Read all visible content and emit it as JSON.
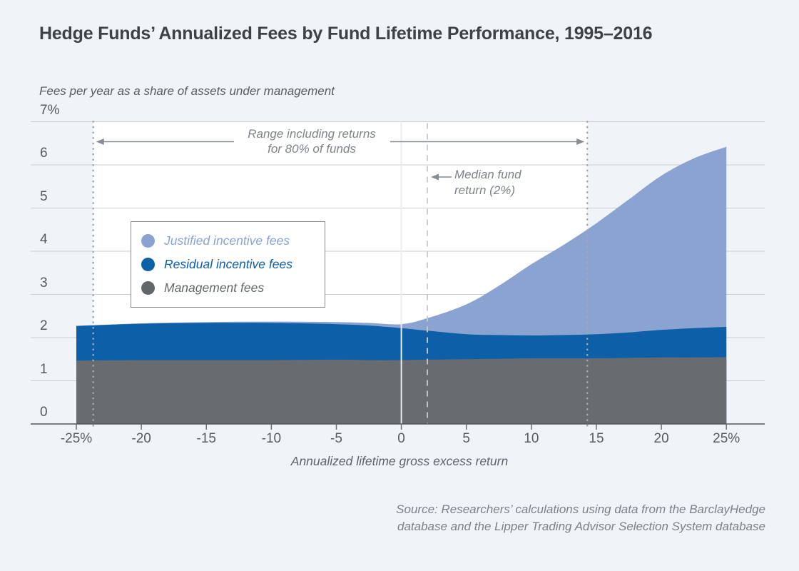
{
  "page": {
    "background": "#f0f4f9"
  },
  "header": {
    "title": "Hedge Funds’ Annualized Fees by Fund Lifetime Performance, 1995–2016"
  },
  "chart": {
    "subtitle": "Fees per year as a share of assets under management",
    "x_axis_title": "Annualized lifetime gross excess return"
  },
  "legend": {
    "items": [
      {
        "label": "Justified incentive fees",
        "color": "#8ba3d1"
      },
      {
        "label": "Residual incentive fees",
        "color": "#0d5fa8"
      },
      {
        "label": "Management fees",
        "color": "#63666b"
      }
    ]
  },
  "annotations": {
    "range": {
      "line1": "Range including returns",
      "line2": "for 80% of funds"
    },
    "median": {
      "line1": "Median fund",
      "line2": "return (2%)"
    }
  },
  "source": {
    "line1": "Source: Researchers’ calculations using data from the BarclayHedge",
    "line2": "database and the Lipper Trading Advisor Selection System database"
  },
  "chart_data": {
    "type": "area",
    "title": "Hedge Funds’ Annualized Fees by Fund Lifetime Performance, 1995–2016",
    "ylabel": "Fees per year as a share of assets under management",
    "xlabel": "Annualized lifetime gross excess return",
    "xlim": [
      -25,
      25
    ],
    "ylim": [
      0,
      7
    ],
    "grid": true,
    "legend_position": "upper-left-inside",
    "stacked": true,
    "x": [
      -25,
      -20,
      -15,
      -10,
      -5,
      -2.5,
      0,
      2,
      5,
      7.5,
      10,
      12.5,
      15,
      17.5,
      20,
      22.5,
      25
    ],
    "series": [
      {
        "name": "Management fees",
        "color": "#686b6f",
        "values": [
          1.47,
          1.48,
          1.48,
          1.48,
          1.49,
          1.48,
          1.48,
          1.49,
          1.5,
          1.51,
          1.52,
          1.52,
          1.52,
          1.53,
          1.54,
          1.54,
          1.55
        ]
      },
      {
        "name": "Residual incentive fees",
        "color": "#0d5fa8",
        "values": [
          0.8,
          0.84,
          0.86,
          0.86,
          0.82,
          0.8,
          0.74,
          0.67,
          0.58,
          0.55,
          0.53,
          0.54,
          0.56,
          0.59,
          0.64,
          0.68,
          0.7
        ]
      },
      {
        "name": "Justified incentive fees",
        "color": "#8ba3d1",
        "values": [
          0.0,
          0.01,
          0.02,
          0.03,
          0.05,
          0.06,
          0.09,
          0.29,
          0.69,
          1.14,
          1.65,
          2.09,
          2.57,
          3.08,
          3.57,
          3.93,
          4.17
        ]
      }
    ],
    "x_ticks": [
      {
        "v": -25,
        "label": "-25%"
      },
      {
        "v": -20,
        "label": "-20"
      },
      {
        "v": -15,
        "label": "-15"
      },
      {
        "v": -10,
        "label": "-10"
      },
      {
        "v": -5,
        "label": "-5"
      },
      {
        "v": 0,
        "label": "0"
      },
      {
        "v": 5,
        "label": "5"
      },
      {
        "v": 10,
        "label": "10"
      },
      {
        "v": 15,
        "label": "15"
      },
      {
        "v": 20,
        "label": "20"
      },
      {
        "v": 25,
        "label": "25%"
      }
    ],
    "y_ticks": [
      {
        "v": 7,
        "label": "7%"
      },
      {
        "v": 6,
        "label": "6"
      },
      {
        "v": 5,
        "label": "5"
      },
      {
        "v": 4,
        "label": "4"
      },
      {
        "v": 3,
        "label": "3"
      },
      {
        "v": 2,
        "label": "2"
      },
      {
        "v": 1,
        "label": "1"
      },
      {
        "v": 0,
        "label": "0"
      }
    ],
    "annotations": {
      "range_80pct": [
        -23.7,
        14.3
      ],
      "median_pct": 2,
      "zero_line_pct": 0
    },
    "colors": {
      "band": "#ffffff",
      "gridline": "#c9ced3",
      "axis": "#53585c",
      "dotted_line": "#a2a8ae",
      "dashed_line": "#c6cbd0",
      "zero_line": "#e9edf0",
      "arrow": "#878d93"
    }
  }
}
